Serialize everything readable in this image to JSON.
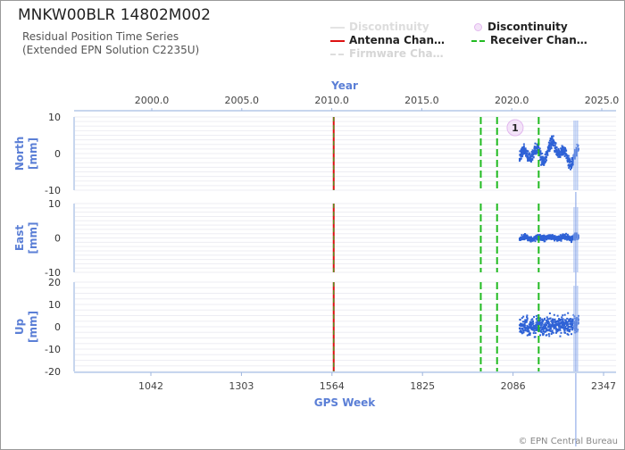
{
  "title": "MNKW00BLR 14802M002",
  "subtitle": [
    "Residual Position Time Series",
    "(Extended EPN Solution C2235U)"
  ],
  "legend": [
    {
      "label": "Discontinuity",
      "style": "line",
      "color": "#dddddd",
      "dim": true
    },
    {
      "label": "Discontinuity",
      "style": "circle",
      "color": "#e8c8f0",
      "dim": false
    },
    {
      "label": "Antenna Chan…",
      "style": "line",
      "color": "#dd1111",
      "dim": false
    },
    {
      "label": "Receiver Chan…",
      "style": "dashed",
      "color": "#22bb22",
      "dim": false
    },
    {
      "label": "Firmware Cha…",
      "style": "dashed",
      "color": "#dddddd",
      "dim": true
    }
  ],
  "credit": "© EPN Central Bureau",
  "chart_data": {
    "type": "scatter",
    "x_top": {
      "label": "Year",
      "ticks": [
        "2000.0",
        "2005.0",
        "2010.0",
        "2015.0",
        "2020.0",
        "2025.0"
      ],
      "values": [
        2000,
        2005,
        2010,
        2015,
        2020,
        2025
      ]
    },
    "x_bottom": {
      "label": "GPS Week",
      "ticks": [
        "1042",
        "1303",
        "1564",
        "1825",
        "2086",
        "2347"
      ],
      "values": [
        1042,
        1303,
        1564,
        1825,
        2086,
        2347
      ]
    },
    "antenna_changes_gps_week": [
      1569
    ],
    "receiver_changes_gps_week": [
      1993,
      2040,
      2160
    ],
    "discontinuity_marker": {
      "label": "1",
      "gps_week": 2092,
      "panel": "north"
    },
    "panels": [
      {
        "name": "North",
        "unit": "[mm]",
        "ylim": [
          -10,
          10
        ],
        "yticks": [
          10,
          0,
          -10
        ]
      },
      {
        "name": "East",
        "unit": "[mm]",
        "ylim": [
          -10,
          10
        ],
        "yticks": [
          10,
          0,
          -10
        ]
      },
      {
        "name": "Up",
        "unit": "[mm]",
        "ylim": [
          -20,
          20
        ],
        "yticks": [
          20,
          10,
          0,
          -10,
          -20
        ]
      }
    ],
    "series_segments": {
      "gps_week_start": 2105,
      "gps_week_end": 2275,
      "north": {
        "segments": [
          [
            2105,
            0.5
          ],
          [
            2130,
            -1.0
          ],
          [
            2150,
            1.0
          ],
          [
            2170,
            -1.5
          ],
          [
            2200,
            2.5
          ],
          [
            2230,
            0.0
          ],
          [
            2250,
            -2.0
          ],
          [
            2275,
            0.5
          ]
        ],
        "scatter_mm": 1.5
      },
      "east": {
        "segments": [
          [
            2105,
            0.0
          ],
          [
            2275,
            0.2
          ]
        ],
        "scatter_mm": 0.8
      },
      "up": {
        "segments": [
          [
            2105,
            0.0
          ],
          [
            2275,
            1.0
          ]
        ],
        "scatter_mm": 4.0
      }
    }
  }
}
